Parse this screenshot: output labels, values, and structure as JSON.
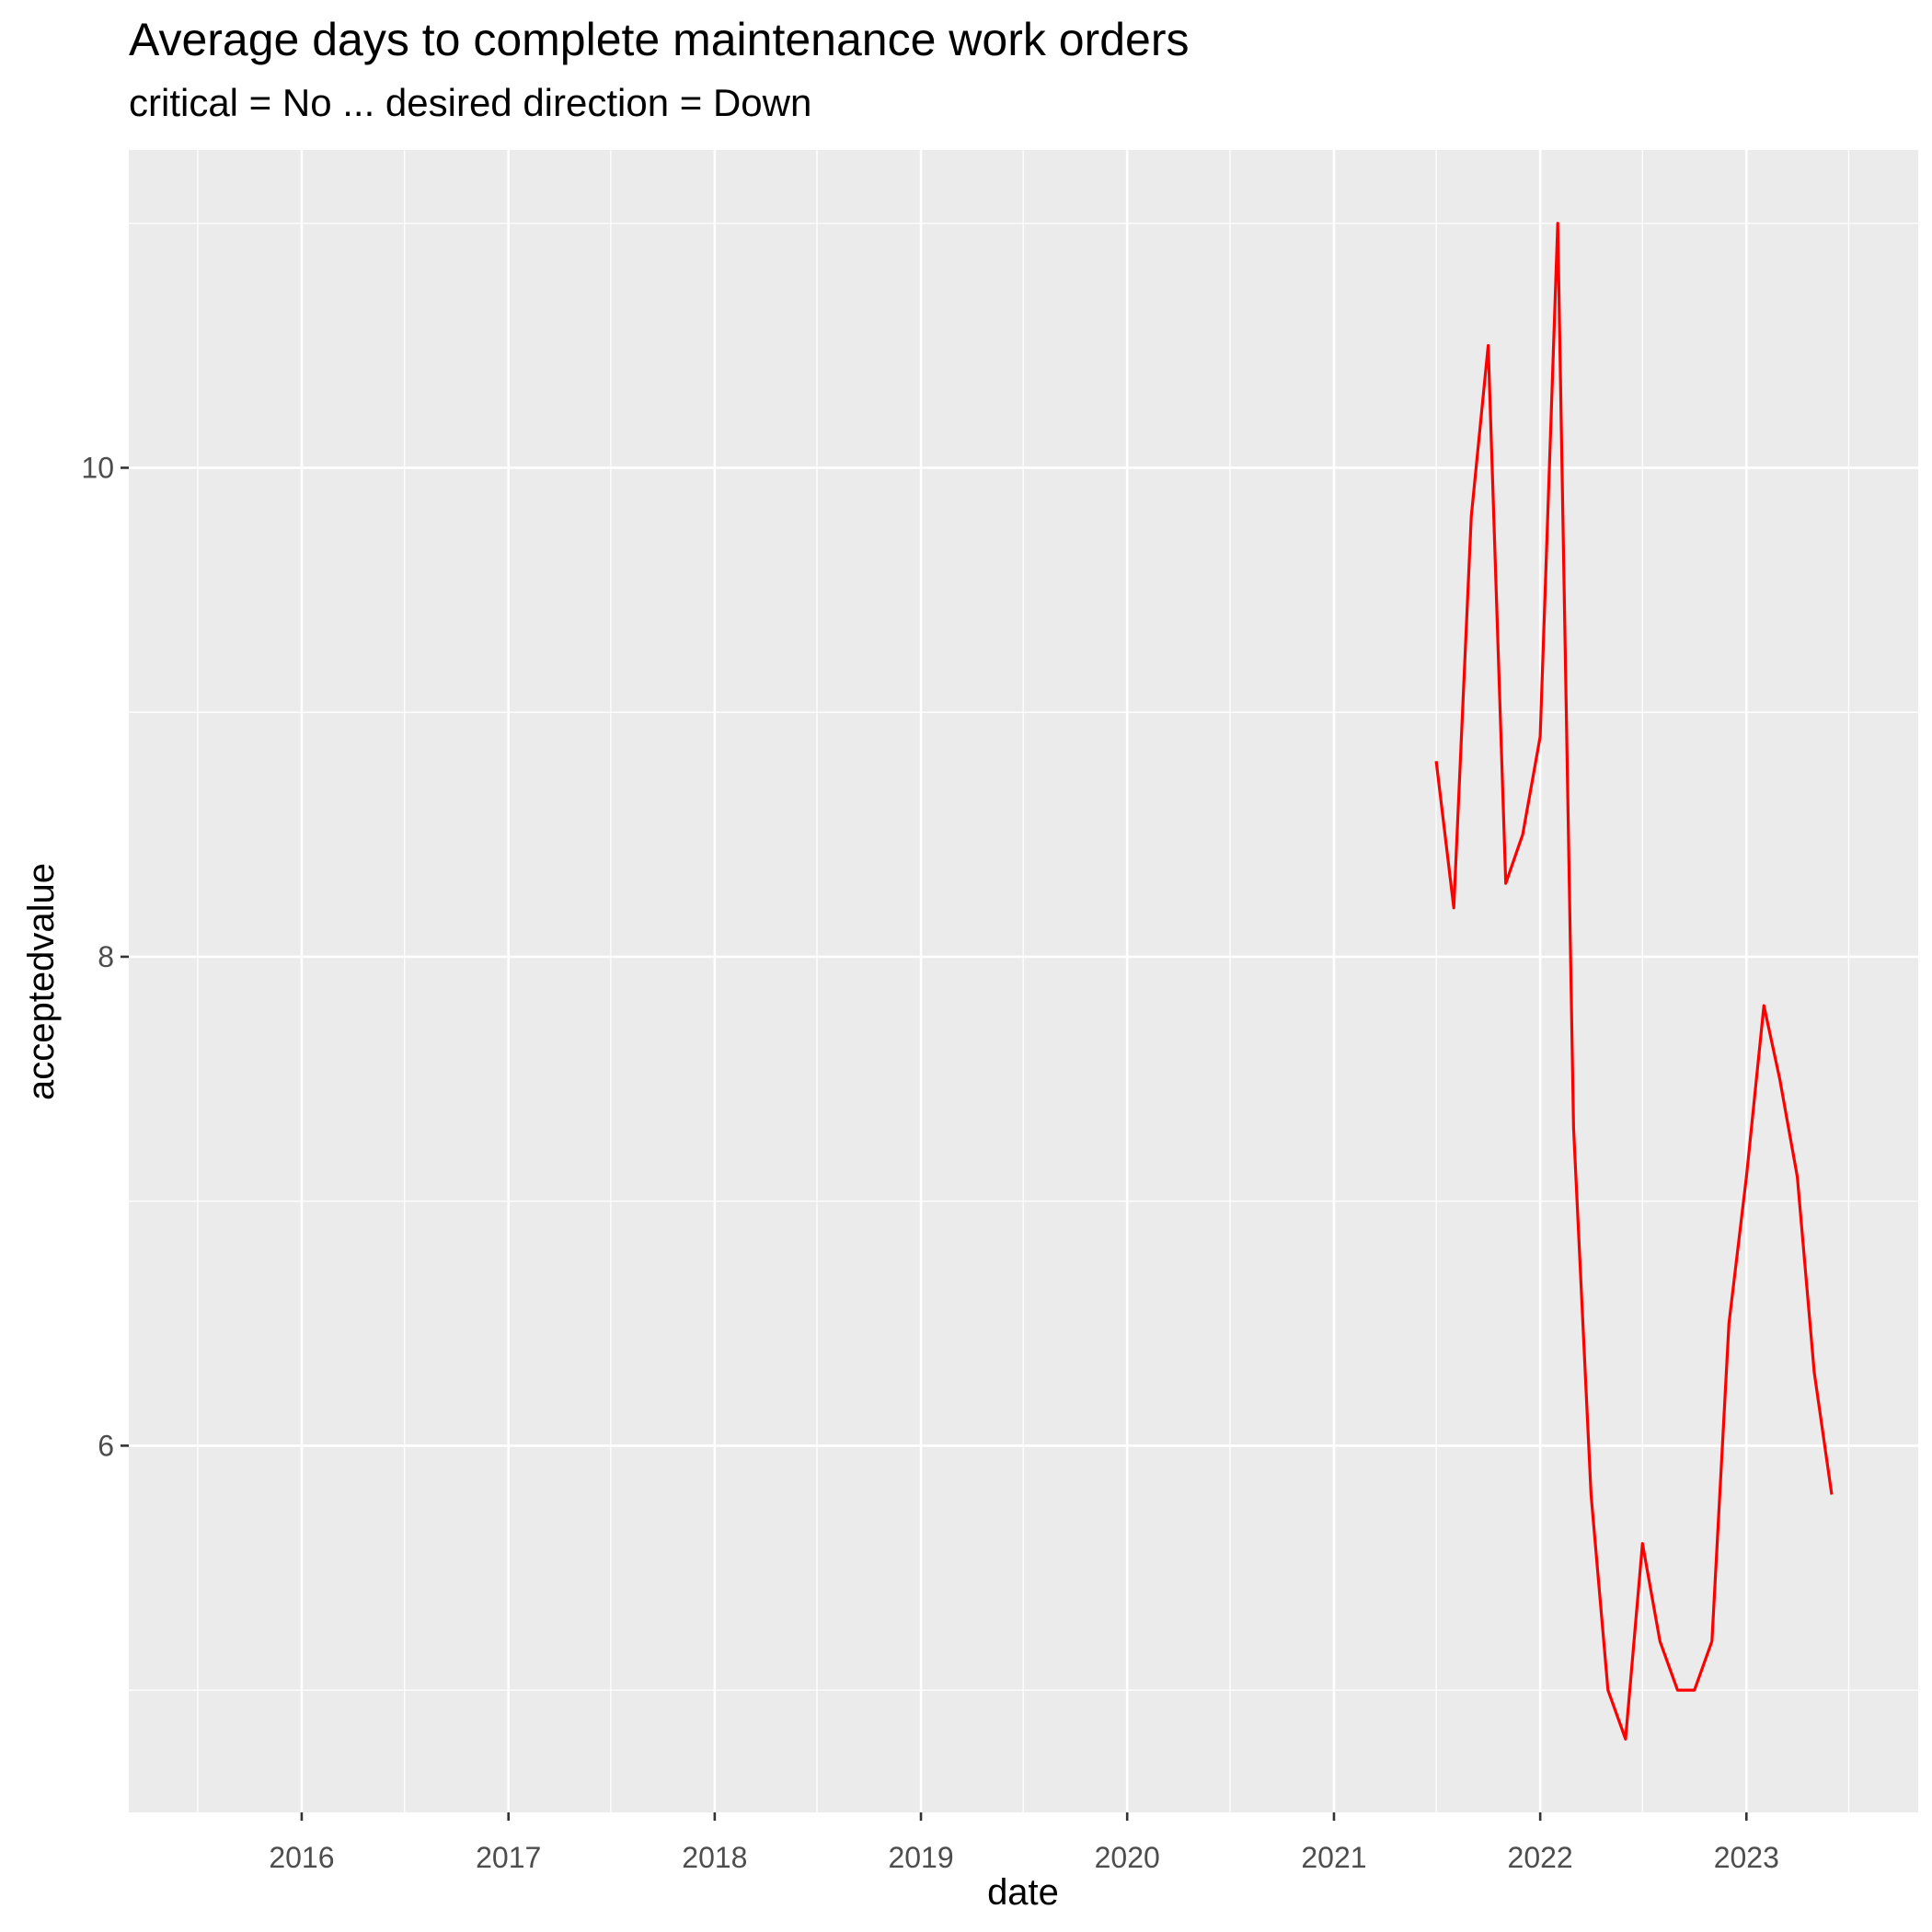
{
  "chart_data": {
    "type": "line",
    "title": "Average days to complete maintenance work orders",
    "subtitle": "critical = No ... desired direction = Down",
    "xlabel": "date",
    "ylabel": "acceptedvalue",
    "x_scale": "date",
    "xlim": [
      "2015-03-01",
      "2023-11-01"
    ],
    "ylim": [
      4.5,
      11.3
    ],
    "x_ticks": [
      "2016",
      "2017",
      "2018",
      "2019",
      "2020",
      "2021",
      "2022",
      "2023"
    ],
    "y_ticks": [
      6,
      8,
      10
    ],
    "grid": true,
    "legend": "none",
    "colors": {
      "line": "#ff0000",
      "panel": "#ebebeb",
      "grid": "#ffffff"
    },
    "x": [
      "2021-07-01",
      "2021-08-01",
      "2021-09-01",
      "2021-10-01",
      "2021-11-01",
      "2021-12-01",
      "2022-01-01",
      "2022-02-01",
      "2022-03-01",
      "2022-04-01",
      "2022-05-01",
      "2022-06-01",
      "2022-07-01",
      "2022-08-01",
      "2022-09-01",
      "2022-10-01",
      "2022-11-01",
      "2022-12-01",
      "2023-01-01",
      "2023-02-01",
      "2023-03-01",
      "2023-04-01",
      "2023-05-01",
      "2023-06-01"
    ],
    "values": [
      8.8,
      8.2,
      9.8,
      10.5,
      8.3,
      8.5,
      8.9,
      11.0,
      7.3,
      5.8,
      5.0,
      4.8,
      5.6,
      5.2,
      5.0,
      5.0,
      5.2,
      6.5,
      7.1,
      7.8,
      7.5,
      7.1,
      6.3,
      5.8
    ]
  }
}
